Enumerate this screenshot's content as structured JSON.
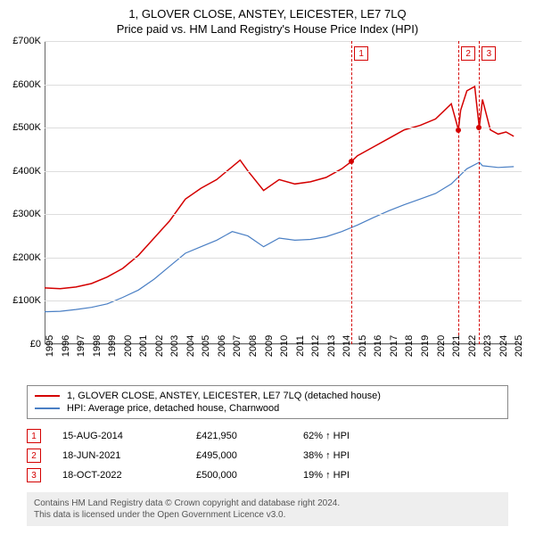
{
  "title": "1, GLOVER CLOSE, ANSTEY, LEICESTER, LE7 7LQ",
  "subtitle": "Price paid vs. HM Land Registry's House Price Index (HPI)",
  "chart": {
    "type": "line",
    "ylim": [
      0,
      700000
    ],
    "ytick_step": 100000,
    "yticks": [
      "£0",
      "£100K",
      "£200K",
      "£300K",
      "£400K",
      "£500K",
      "£600K",
      "£700K"
    ],
    "x_start": 1995,
    "x_end": 2025.5,
    "xticks": [
      1995,
      1996,
      1997,
      1998,
      1999,
      2000,
      2001,
      2002,
      2003,
      2004,
      2005,
      2006,
      2007,
      2008,
      2009,
      2010,
      2011,
      2012,
      2013,
      2014,
      2015,
      2016,
      2017,
      2018,
      2019,
      2020,
      2021,
      2022,
      2023,
      2024,
      2025
    ],
    "background_color": "#ffffff",
    "grid_color": "#dddddd",
    "series": [
      {
        "name": "property",
        "color": "#d40000",
        "width": 1.5,
        "data": [
          [
            1995,
            130000
          ],
          [
            1996,
            128000
          ],
          [
            1997,
            132000
          ],
          [
            1998,
            140000
          ],
          [
            1999,
            155000
          ],
          [
            2000,
            175000
          ],
          [
            2001,
            205000
          ],
          [
            2002,
            245000
          ],
          [
            2003,
            285000
          ],
          [
            2004,
            335000
          ],
          [
            2005,
            360000
          ],
          [
            2006,
            380000
          ],
          [
            2007,
            410000
          ],
          [
            2007.5,
            425000
          ],
          [
            2008,
            400000
          ],
          [
            2009,
            355000
          ],
          [
            2010,
            380000
          ],
          [
            2011,
            370000
          ],
          [
            2012,
            375000
          ],
          [
            2013,
            385000
          ],
          [
            2014,
            405000
          ],
          [
            2014.62,
            421950
          ],
          [
            2015,
            435000
          ],
          [
            2016,
            455000
          ],
          [
            2017,
            475000
          ],
          [
            2018,
            495000
          ],
          [
            2019,
            505000
          ],
          [
            2020,
            520000
          ],
          [
            2021,
            555000
          ],
          [
            2021.46,
            495000
          ],
          [
            2021.6,
            540000
          ],
          [
            2022,
            585000
          ],
          [
            2022.5,
            595000
          ],
          [
            2022.79,
            500000
          ],
          [
            2023,
            565000
          ],
          [
            2023.5,
            495000
          ],
          [
            2024,
            485000
          ],
          [
            2024.5,
            490000
          ],
          [
            2025,
            480000
          ]
        ]
      },
      {
        "name": "hpi",
        "color": "#4a7fc4",
        "width": 1.2,
        "data": [
          [
            1995,
            75000
          ],
          [
            1996,
            76000
          ],
          [
            1997,
            80000
          ],
          [
            1998,
            85000
          ],
          [
            1999,
            93000
          ],
          [
            2000,
            108000
          ],
          [
            2001,
            125000
          ],
          [
            2002,
            150000
          ],
          [
            2003,
            180000
          ],
          [
            2004,
            210000
          ],
          [
            2005,
            225000
          ],
          [
            2006,
            240000
          ],
          [
            2007,
            260000
          ],
          [
            2008,
            250000
          ],
          [
            2009,
            225000
          ],
          [
            2010,
            245000
          ],
          [
            2011,
            240000
          ],
          [
            2012,
            242000
          ],
          [
            2013,
            248000
          ],
          [
            2014,
            260000
          ],
          [
            2015,
            275000
          ],
          [
            2016,
            292000
          ],
          [
            2017,
            308000
          ],
          [
            2018,
            322000
          ],
          [
            2019,
            335000
          ],
          [
            2020,
            348000
          ],
          [
            2021,
            370000
          ],
          [
            2022,
            405000
          ],
          [
            2022.8,
            420000
          ],
          [
            2023,
            412000
          ],
          [
            2024,
            408000
          ],
          [
            2025,
            410000
          ]
        ]
      }
    ],
    "markers": [
      {
        "id": "1",
        "year": 2014.62,
        "price": 421950,
        "color": "#d40000"
      },
      {
        "id": "2",
        "year": 2021.46,
        "price": 495000,
        "color": "#d40000"
      },
      {
        "id": "3",
        "year": 2022.79,
        "price": 500000,
        "color": "#d40000"
      }
    ]
  },
  "legend": [
    {
      "color": "#d40000",
      "label": "1, GLOVER CLOSE, ANSTEY, LEICESTER, LE7 7LQ (detached house)"
    },
    {
      "color": "#4a7fc4",
      "label": "HPI: Average price, detached house, Charnwood"
    }
  ],
  "sales": [
    {
      "id": "1",
      "date": "15-AUG-2014",
      "price": "£421,950",
      "pct": "62% ↑ HPI",
      "color": "#d40000"
    },
    {
      "id": "2",
      "date": "18-JUN-2021",
      "price": "£495,000",
      "pct": "38% ↑ HPI",
      "color": "#d40000"
    },
    {
      "id": "3",
      "date": "18-OCT-2022",
      "price": "£500,000",
      "pct": "19% ↑ HPI",
      "color": "#d40000"
    }
  ],
  "footer": {
    "line1": "Contains HM Land Registry data © Crown copyright and database right 2024.",
    "line2": "This data is licensed under the Open Government Licence v3.0."
  }
}
